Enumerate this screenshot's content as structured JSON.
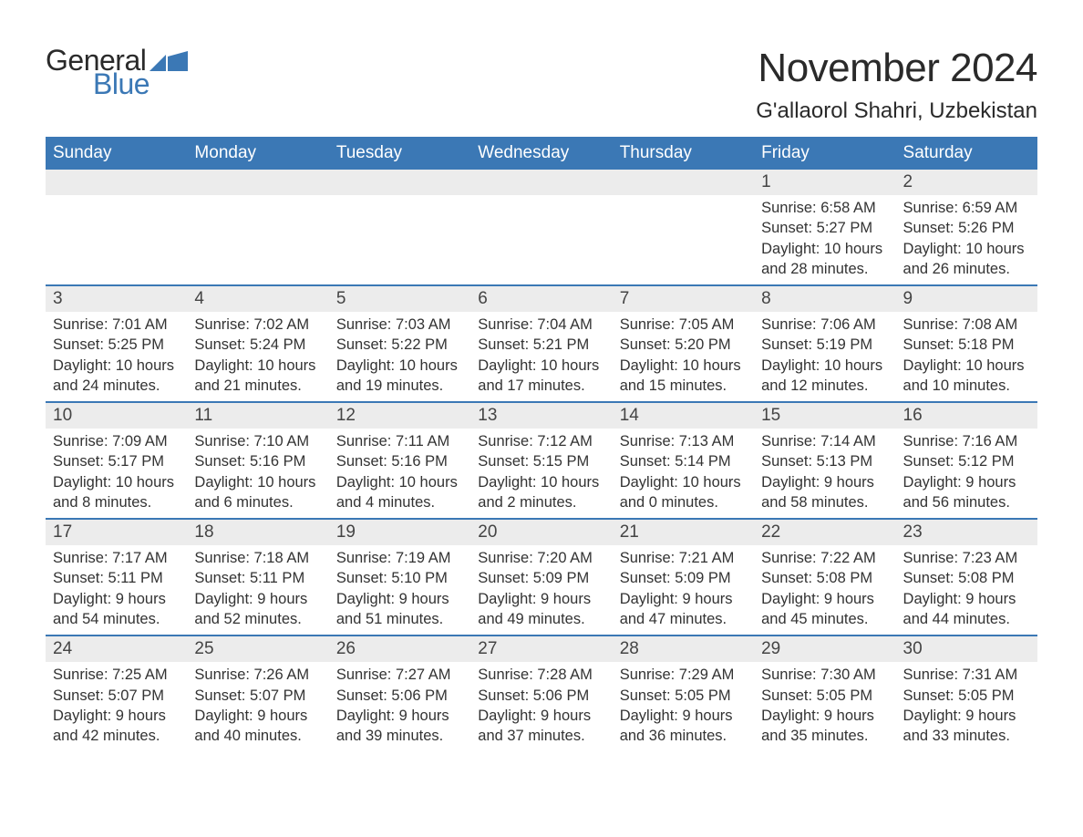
{
  "logo": {
    "textGeneral": "General",
    "textBlue": "Blue",
    "flagColor": "#3b78b5",
    "generalColor": "#2a2a2a",
    "blueColor": "#3b78b5"
  },
  "title": {
    "month": "November 2024",
    "location": "G'allaorol Shahri, Uzbekistan",
    "monthFontSize": 44,
    "locationFontSize": 24,
    "textColor": "#2a2a2a"
  },
  "colors": {
    "headerBg": "#3b78b5",
    "headerText": "#ffffff",
    "dayBarBg": "#ececec",
    "bodyText": "#333333",
    "rowBorder": "#3b78b5",
    "pageBg": "#ffffff"
  },
  "calendar": {
    "dayNames": [
      "Sunday",
      "Monday",
      "Tuesday",
      "Wednesday",
      "Thursday",
      "Friday",
      "Saturday"
    ],
    "weeks": [
      [
        null,
        null,
        null,
        null,
        null,
        {
          "n": "1",
          "sunrise": "Sunrise: 6:58 AM",
          "sunset": "Sunset: 5:27 PM",
          "daylight": "Daylight: 10 hours and 28 minutes."
        },
        {
          "n": "2",
          "sunrise": "Sunrise: 6:59 AM",
          "sunset": "Sunset: 5:26 PM",
          "daylight": "Daylight: 10 hours and 26 minutes."
        }
      ],
      [
        {
          "n": "3",
          "sunrise": "Sunrise: 7:01 AM",
          "sunset": "Sunset: 5:25 PM",
          "daylight": "Daylight: 10 hours and 24 minutes."
        },
        {
          "n": "4",
          "sunrise": "Sunrise: 7:02 AM",
          "sunset": "Sunset: 5:24 PM",
          "daylight": "Daylight: 10 hours and 21 minutes."
        },
        {
          "n": "5",
          "sunrise": "Sunrise: 7:03 AM",
          "sunset": "Sunset: 5:22 PM",
          "daylight": "Daylight: 10 hours and 19 minutes."
        },
        {
          "n": "6",
          "sunrise": "Sunrise: 7:04 AM",
          "sunset": "Sunset: 5:21 PM",
          "daylight": "Daylight: 10 hours and 17 minutes."
        },
        {
          "n": "7",
          "sunrise": "Sunrise: 7:05 AM",
          "sunset": "Sunset: 5:20 PM",
          "daylight": "Daylight: 10 hours and 15 minutes."
        },
        {
          "n": "8",
          "sunrise": "Sunrise: 7:06 AM",
          "sunset": "Sunset: 5:19 PM",
          "daylight": "Daylight: 10 hours and 12 minutes."
        },
        {
          "n": "9",
          "sunrise": "Sunrise: 7:08 AM",
          "sunset": "Sunset: 5:18 PM",
          "daylight": "Daylight: 10 hours and 10 minutes."
        }
      ],
      [
        {
          "n": "10",
          "sunrise": "Sunrise: 7:09 AM",
          "sunset": "Sunset: 5:17 PM",
          "daylight": "Daylight: 10 hours and 8 minutes."
        },
        {
          "n": "11",
          "sunrise": "Sunrise: 7:10 AM",
          "sunset": "Sunset: 5:16 PM",
          "daylight": "Daylight: 10 hours and 6 minutes."
        },
        {
          "n": "12",
          "sunrise": "Sunrise: 7:11 AM",
          "sunset": "Sunset: 5:16 PM",
          "daylight": "Daylight: 10 hours and 4 minutes."
        },
        {
          "n": "13",
          "sunrise": "Sunrise: 7:12 AM",
          "sunset": "Sunset: 5:15 PM",
          "daylight": "Daylight: 10 hours and 2 minutes."
        },
        {
          "n": "14",
          "sunrise": "Sunrise: 7:13 AM",
          "sunset": "Sunset: 5:14 PM",
          "daylight": "Daylight: 10 hours and 0 minutes."
        },
        {
          "n": "15",
          "sunrise": "Sunrise: 7:14 AM",
          "sunset": "Sunset: 5:13 PM",
          "daylight": "Daylight: 9 hours and 58 minutes."
        },
        {
          "n": "16",
          "sunrise": "Sunrise: 7:16 AM",
          "sunset": "Sunset: 5:12 PM",
          "daylight": "Daylight: 9 hours and 56 minutes."
        }
      ],
      [
        {
          "n": "17",
          "sunrise": "Sunrise: 7:17 AM",
          "sunset": "Sunset: 5:11 PM",
          "daylight": "Daylight: 9 hours and 54 minutes."
        },
        {
          "n": "18",
          "sunrise": "Sunrise: 7:18 AM",
          "sunset": "Sunset: 5:11 PM",
          "daylight": "Daylight: 9 hours and 52 minutes."
        },
        {
          "n": "19",
          "sunrise": "Sunrise: 7:19 AM",
          "sunset": "Sunset: 5:10 PM",
          "daylight": "Daylight: 9 hours and 51 minutes."
        },
        {
          "n": "20",
          "sunrise": "Sunrise: 7:20 AM",
          "sunset": "Sunset: 5:09 PM",
          "daylight": "Daylight: 9 hours and 49 minutes."
        },
        {
          "n": "21",
          "sunrise": "Sunrise: 7:21 AM",
          "sunset": "Sunset: 5:09 PM",
          "daylight": "Daylight: 9 hours and 47 minutes."
        },
        {
          "n": "22",
          "sunrise": "Sunrise: 7:22 AM",
          "sunset": "Sunset: 5:08 PM",
          "daylight": "Daylight: 9 hours and 45 minutes."
        },
        {
          "n": "23",
          "sunrise": "Sunrise: 7:23 AM",
          "sunset": "Sunset: 5:08 PM",
          "daylight": "Daylight: 9 hours and 44 minutes."
        }
      ],
      [
        {
          "n": "24",
          "sunrise": "Sunrise: 7:25 AM",
          "sunset": "Sunset: 5:07 PM",
          "daylight": "Daylight: 9 hours and 42 minutes."
        },
        {
          "n": "25",
          "sunrise": "Sunrise: 7:26 AM",
          "sunset": "Sunset: 5:07 PM",
          "daylight": "Daylight: 9 hours and 40 minutes."
        },
        {
          "n": "26",
          "sunrise": "Sunrise: 7:27 AM",
          "sunset": "Sunset: 5:06 PM",
          "daylight": "Daylight: 9 hours and 39 minutes."
        },
        {
          "n": "27",
          "sunrise": "Sunrise: 7:28 AM",
          "sunset": "Sunset: 5:06 PM",
          "daylight": "Daylight: 9 hours and 37 minutes."
        },
        {
          "n": "28",
          "sunrise": "Sunrise: 7:29 AM",
          "sunset": "Sunset: 5:05 PM",
          "daylight": "Daylight: 9 hours and 36 minutes."
        },
        {
          "n": "29",
          "sunrise": "Sunrise: 7:30 AM",
          "sunset": "Sunset: 5:05 PM",
          "daylight": "Daylight: 9 hours and 35 minutes."
        },
        {
          "n": "30",
          "sunrise": "Sunrise: 7:31 AM",
          "sunset": "Sunset: 5:05 PM",
          "daylight": "Daylight: 9 hours and 33 minutes."
        }
      ]
    ]
  }
}
